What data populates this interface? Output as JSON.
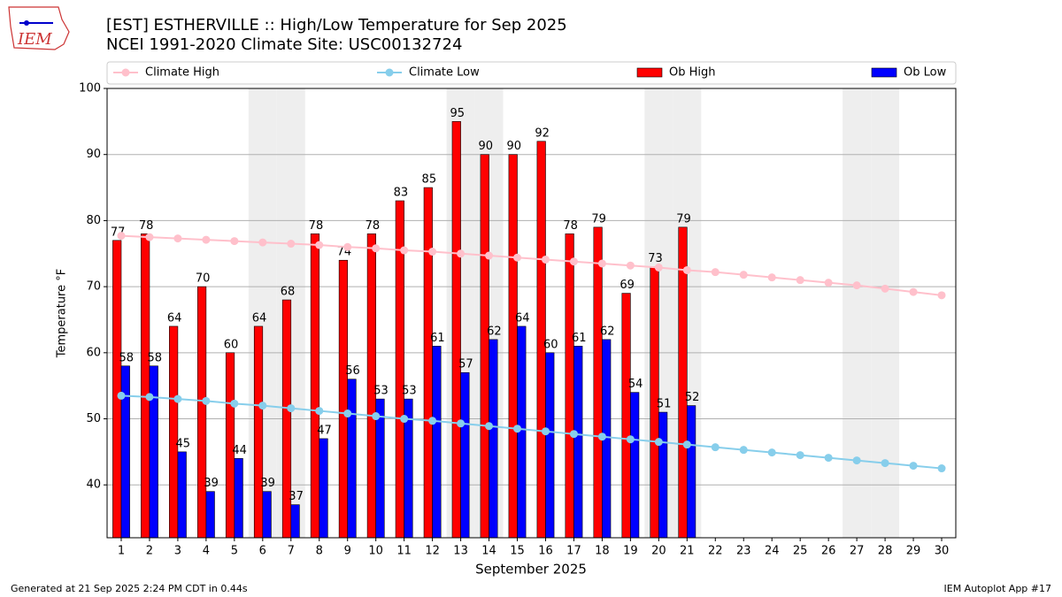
{
  "chart_data": {
    "type": "bar_line",
    "title": "[EST] ESTHERVILLE :: High/Low Temperature for Sep 2025",
    "subtitle": "NCEI 1991-2020 Climate Site: USC00132724",
    "x_label": "September 2025",
    "y_label": "Temperature °F",
    "logo_text": "IEM",
    "footer_left": "Generated at 21 Sep 2025 2:24 PM CDT in 0.44s",
    "footer_right": "IEM Autoplot App #17",
    "x": [
      1,
      2,
      3,
      4,
      5,
      6,
      7,
      8,
      9,
      10,
      11,
      12,
      13,
      14,
      15,
      16,
      17,
      18,
      19,
      20,
      21,
      22,
      23,
      24,
      25,
      26,
      27,
      28,
      29,
      30
    ],
    "xlim": [
      0.5,
      30.5
    ],
    "xticks": [
      1,
      2,
      3,
      4,
      5,
      6,
      7,
      8,
      9,
      10,
      11,
      12,
      13,
      14,
      15,
      16,
      17,
      18,
      19,
      20,
      21,
      22,
      23,
      24,
      25,
      26,
      27,
      28,
      29,
      30
    ],
    "ylim": [
      32,
      100
    ],
    "yticks": [
      40,
      50,
      60,
      70,
      80,
      90,
      100
    ],
    "grid": true,
    "weekend_days": [
      6,
      7,
      13,
      14,
      20,
      21,
      27,
      28
    ],
    "series": [
      {
        "name": "Climate High",
        "kind": "line",
        "color": "#ffc0cb",
        "values": [
          77.7,
          77.5,
          77.3,
          77.1,
          76.9,
          76.7,
          76.5,
          76.3,
          76.0,
          75.8,
          75.5,
          75.3,
          75.0,
          74.7,
          74.4,
          74.1,
          73.8,
          73.5,
          73.2,
          72.9,
          72.5,
          72.2,
          71.8,
          71.4,
          71.0,
          70.6,
          70.2,
          69.7,
          69.2,
          68.7
        ]
      },
      {
        "name": "Climate Low",
        "kind": "line",
        "color": "#87ceeb",
        "values": [
          53.5,
          53.3,
          53.0,
          52.7,
          52.3,
          52.0,
          51.6,
          51.2,
          50.8,
          50.4,
          50.0,
          49.7,
          49.3,
          48.9,
          48.5,
          48.1,
          47.7,
          47.3,
          46.9,
          46.5,
          46.1,
          45.7,
          45.3,
          44.9,
          44.5,
          44.1,
          43.7,
          43.3,
          42.9,
          42.5
        ]
      },
      {
        "name": "Ob High",
        "kind": "bar",
        "color": "#ff0000",
        "values": [
          77,
          78,
          64,
          70,
          60,
          64,
          68,
          78,
          74,
          78,
          83,
          85,
          95,
          90,
          90,
          92,
          78,
          79,
          69,
          73,
          79,
          null,
          null,
          null,
          null,
          null,
          null,
          null,
          null,
          null
        ]
      },
      {
        "name": "Ob Low",
        "kind": "bar",
        "color": "#0000ff",
        "values": [
          58,
          58,
          45,
          39,
          44,
          39,
          37,
          47,
          56,
          53,
          53,
          61,
          57,
          62,
          64,
          60,
          61,
          62,
          54,
          51,
          52,
          null,
          null,
          null,
          null,
          null,
          null,
          null,
          null,
          null
        ]
      }
    ]
  }
}
